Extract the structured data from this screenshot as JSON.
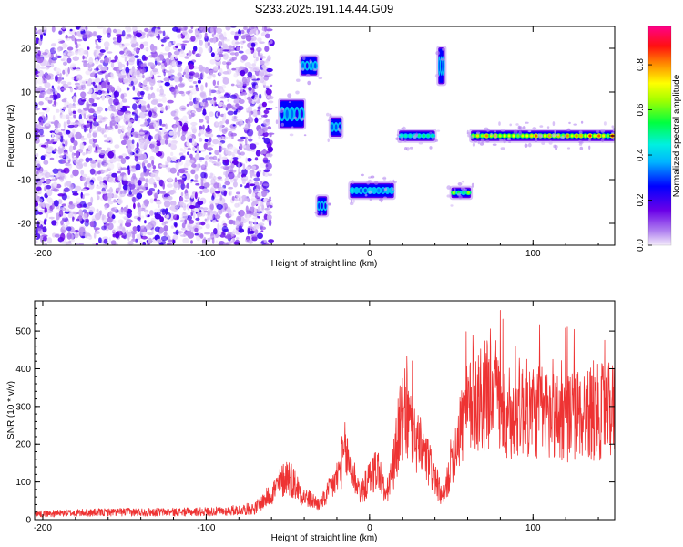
{
  "figure": {
    "title": "S233.2025.191.14.44.G09"
  },
  "colors": {
    "snr_line": "#ee3333",
    "background": "#ffffff",
    "axes": "#000000"
  },
  "chart_data": [
    {
      "type": "heatmap",
      "xlabel": "Height of straight line (km)",
      "ylabel": "Frequency (Hz)",
      "xlim": [
        -205,
        150
      ],
      "ylim": [
        -25,
        25
      ],
      "xticks": [
        -200,
        -100,
        0,
        100
      ],
      "yticks": [
        -20,
        -10,
        0,
        10,
        20
      ],
      "grid": false,
      "colorbar": {
        "label": "Normalized spectral amplitude",
        "range": [
          0,
          0.97
        ],
        "ticks": [
          0.0,
          0.2,
          0.4,
          0.6,
          0.8
        ],
        "colormap": "rainbow: white-lavender, purple, blue, cyan, green, yellow, orange, red, magenta"
      },
      "features": [
        {
          "x_range": [
            -205,
            -60
          ],
          "freq_range": [
            -25,
            25
          ],
          "amplitude": 0.1
        },
        {
          "x_range": [
            -55,
            -40
          ],
          "freq_range": [
            2,
            8
          ],
          "amplitude": 0.3
        },
        {
          "x_range": [
            -42,
            -32
          ],
          "freq_range": [
            14,
            18
          ],
          "amplitude": 0.3
        },
        {
          "x_range": [
            -32,
            -26
          ],
          "freq_range": [
            -18,
            -14
          ],
          "amplitude": 0.3
        },
        {
          "x_range": [
            -24,
            -17
          ],
          "freq_range": [
            0,
            4
          ],
          "amplitude": 0.3
        },
        {
          "x_range": [
            -12,
            15
          ],
          "freq_range": [
            -14,
            -11
          ],
          "amplitude": 0.4
        },
        {
          "x_range": [
            18,
            40
          ],
          "freq_range": [
            -1,
            1
          ],
          "amplitude": 0.5
        },
        {
          "x_range": [
            42,
            46
          ],
          "freq_range": [
            12,
            20
          ],
          "amplitude": 0.3
        },
        {
          "x_range": [
            50,
            62
          ],
          "freq_range": [
            -14,
            -12
          ],
          "amplitude": 0.6
        },
        {
          "x_range": [
            62,
            150
          ],
          "freq_range": [
            -1,
            1
          ],
          "amplitude": 0.8
        }
      ]
    },
    {
      "type": "line",
      "xlabel": "Height of straight line (km)",
      "ylabel": "SNR (10 * v/v)",
      "xlim": [
        -205,
        150
      ],
      "ylim": [
        0,
        580
      ],
      "xticks": [
        -200,
        -100,
        0,
        100
      ],
      "yticks": [
        0,
        100,
        200,
        300,
        400,
        500
      ],
      "grid": false,
      "series": [
        {
          "x": [
            -205,
            -180,
            -150,
            -120,
            -90,
            -70,
            -60,
            -50,
            -40,
            -30,
            -20,
            -15,
            -10,
            -5,
            0,
            5,
            10,
            15,
            18,
            22,
            28,
            35,
            40,
            45,
            48,
            52,
            58,
            65,
            72,
            76,
            80,
            85,
            90,
            100,
            110,
            120,
            130,
            140,
            150
          ],
          "y": [
            15,
            18,
            20,
            20,
            22,
            30,
            70,
            120,
            60,
            40,
            110,
            180,
            120,
            70,
            110,
            140,
            60,
            150,
            240,
            280,
            210,
            160,
            110,
            50,
            110,
            200,
            270,
            320,
            330,
            380,
            310,
            230,
            300,
            290,
            280,
            270,
            280,
            285,
            290
          ]
        }
      ]
    }
  ]
}
